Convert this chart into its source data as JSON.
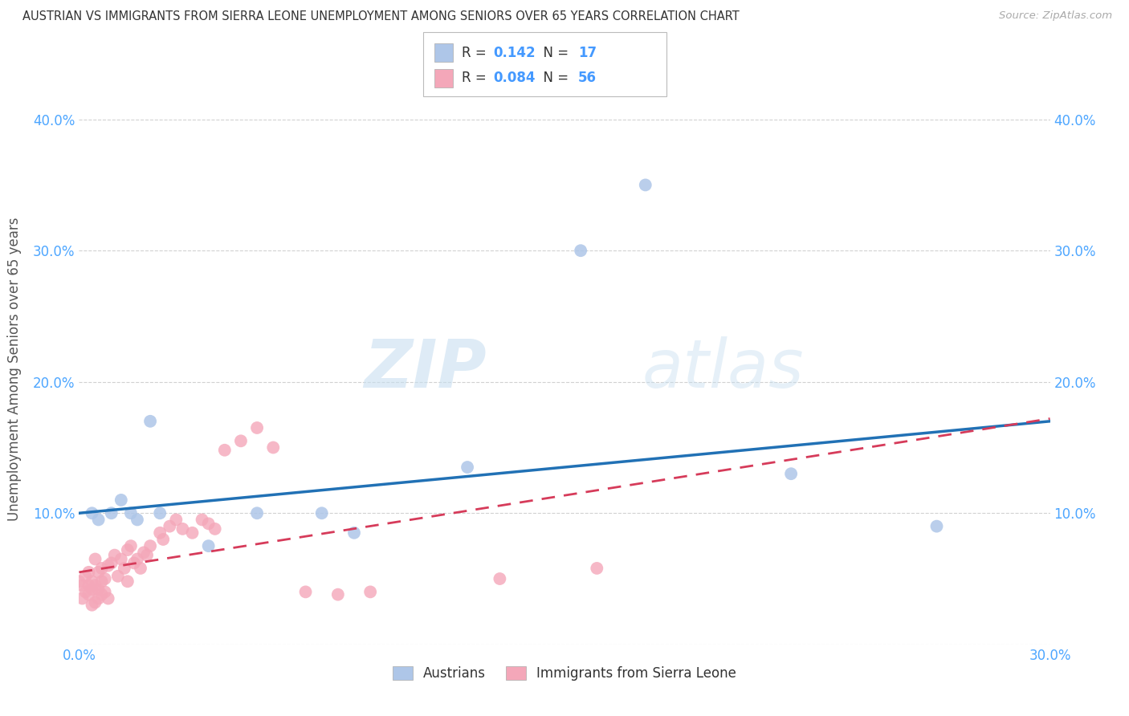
{
  "title": "AUSTRIAN VS IMMIGRANTS FROM SIERRA LEONE UNEMPLOYMENT AMONG SENIORS OVER 65 YEARS CORRELATION CHART",
  "source": "Source: ZipAtlas.com",
  "ylabel": "Unemployment Among Seniors over 65 years",
  "xlim": [
    0.0,
    0.3
  ],
  "ylim": [
    0.0,
    0.42
  ],
  "austrians_R": 0.142,
  "austrians_N": 17,
  "sierra_leone_R": 0.084,
  "sierra_leone_N": 56,
  "austrians_color": "#aec6e8",
  "sierra_leone_color": "#f4a7b9",
  "trend_austrians_color": "#2171b5",
  "trend_sierra_leone_color": "#d63b5a",
  "austrians_x": [
    0.004,
    0.006,
    0.01,
    0.013,
    0.016,
    0.018,
    0.022,
    0.025,
    0.04,
    0.055,
    0.075,
    0.085,
    0.12,
    0.155,
    0.175,
    0.22,
    0.265
  ],
  "austrians_y": [
    0.1,
    0.095,
    0.1,
    0.11,
    0.1,
    0.095,
    0.17,
    0.1,
    0.075,
    0.1,
    0.1,
    0.085,
    0.135,
    0.3,
    0.35,
    0.13,
    0.09
  ],
  "sierra_leone_x": [
    0.0,
    0.001,
    0.001,
    0.002,
    0.002,
    0.003,
    0.003,
    0.003,
    0.004,
    0.004,
    0.004,
    0.005,
    0.005,
    0.005,
    0.006,
    0.006,
    0.006,
    0.007,
    0.007,
    0.007,
    0.008,
    0.008,
    0.009,
    0.009,
    0.01,
    0.011,
    0.012,
    0.013,
    0.014,
    0.015,
    0.015,
    0.016,
    0.017,
    0.018,
    0.019,
    0.02,
    0.021,
    0.022,
    0.025,
    0.026,
    0.028,
    0.03,
    0.032,
    0.035,
    0.038,
    0.04,
    0.042,
    0.045,
    0.05,
    0.055,
    0.06,
    0.07,
    0.08,
    0.09,
    0.13,
    0.16
  ],
  "sierra_leone_y": [
    0.048,
    0.035,
    0.045,
    0.052,
    0.04,
    0.045,
    0.038,
    0.055,
    0.03,
    0.042,
    0.048,
    0.032,
    0.045,
    0.065,
    0.035,
    0.042,
    0.055,
    0.038,
    0.048,
    0.058,
    0.04,
    0.05,
    0.035,
    0.06,
    0.062,
    0.068,
    0.052,
    0.065,
    0.058,
    0.048,
    0.072,
    0.075,
    0.062,
    0.065,
    0.058,
    0.07,
    0.068,
    0.075,
    0.085,
    0.08,
    0.09,
    0.095,
    0.088,
    0.085,
    0.095,
    0.092,
    0.088,
    0.148,
    0.155,
    0.165,
    0.15,
    0.04,
    0.038,
    0.04,
    0.05,
    0.058
  ],
  "legend_austrians_label": "Austrians",
  "legend_sierra_leone_label": "Immigrants from Sierra Leone",
  "watermark_zip": "ZIP",
  "watermark_atlas": "atlas",
  "background_color": "#ffffff",
  "grid_color": "#cccccc",
  "tick_color": "#4da6ff",
  "title_color": "#333333",
  "source_color": "#aaaaaa",
  "label_color": "#555555"
}
